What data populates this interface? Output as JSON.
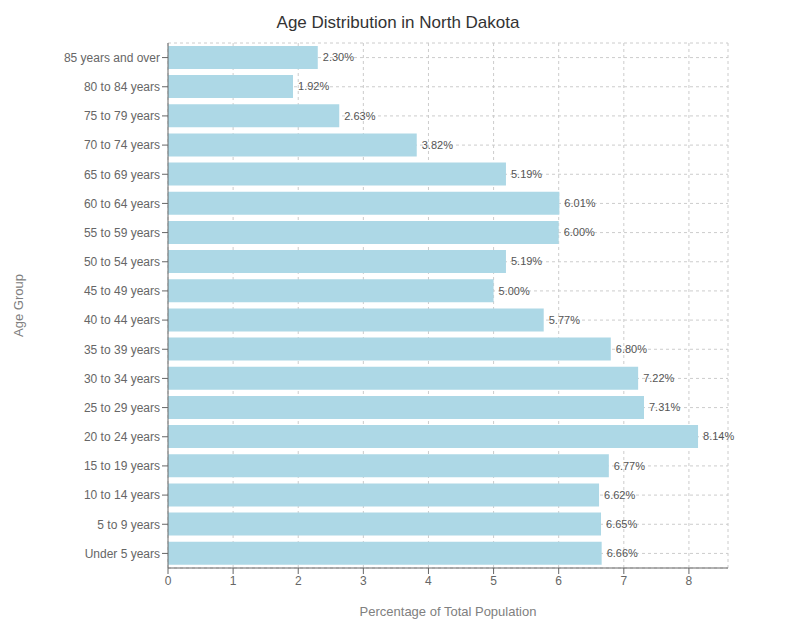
{
  "chart_data": {
    "type": "bar",
    "title": "Age Distribution in North Dakota",
    "xlabel": "Percentage of Total Population",
    "ylabel": "Age Group",
    "orientation": "horizontal",
    "categories": [
      "85 years and over",
      "80 to 84 years",
      "75 to 79 years",
      "70 to 74 years",
      "65 to 69 years",
      "60 to 64 years",
      "55 to 59 years",
      "50 to 54 years",
      "45 to 49 years",
      "40 to 44 years",
      "35 to 39 years",
      "30 to 34 years",
      "25 to 29 years",
      "20 to 24 years",
      "15 to 19 years",
      "10 to 14 years",
      "5 to 9 years",
      "Under 5 years"
    ],
    "values": [
      2.3,
      1.92,
      2.63,
      3.82,
      5.19,
      6.01,
      6.0,
      5.19,
      5.0,
      5.77,
      6.8,
      7.22,
      7.31,
      8.14,
      6.77,
      6.62,
      6.65,
      6.66
    ],
    "value_labels": [
      "2.30%",
      "1.92%",
      "2.63%",
      "3.82%",
      "5.19%",
      "6.01%",
      "6.00%",
      "5.19%",
      "5.00%",
      "5.77%",
      "6.80%",
      "7.22%",
      "7.31%",
      "8.14%",
      "6.77%",
      "6.62%",
      "6.65%",
      "6.66%"
    ],
    "data_labels": true,
    "color": "#add8e6",
    "xlim": [
      0,
      8.6
    ],
    "xticks": [
      0,
      1,
      2,
      3,
      4,
      5,
      6,
      7,
      8
    ],
    "grid": true
  }
}
